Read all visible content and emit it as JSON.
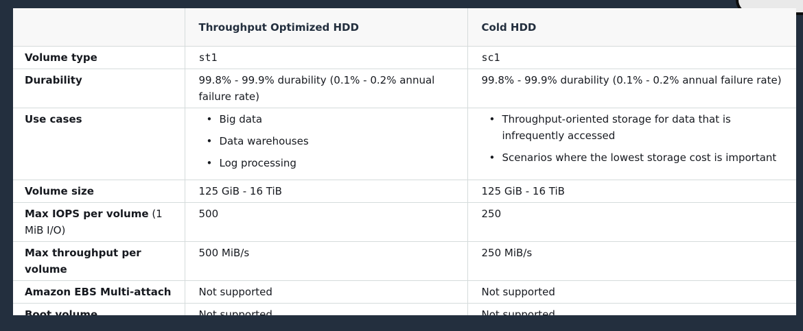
{
  "table": {
    "headers": [
      "",
      "Throughput Optimized HDD",
      "Cold HDD"
    ],
    "rows": {
      "volume_type": {
        "label": "Volume type",
        "st1": "st1",
        "sc1": "sc1"
      },
      "durability": {
        "label": "Durability",
        "st1": "99.8% - 99.9% durability (0.1% - 0.2% annual failure rate)",
        "sc1": "99.8% - 99.9% durability (0.1% - 0.2% annual failure rate)"
      },
      "use_cases": {
        "label": "Use cases",
        "st1": [
          "Big data",
          "Data warehouses",
          "Log processing"
        ],
        "sc1": [
          "Throughput-oriented storage for data that is infrequently accessed",
          "Scenarios where the lowest storage cost is important"
        ]
      },
      "volume_size": {
        "label": "Volume size",
        "st1": "125 GiB - 16 TiB",
        "sc1": "125 GiB - 16 TiB"
      },
      "max_iops": {
        "label_bold": "Max IOPS per volume",
        "label_light": " (1 MiB I/O)",
        "st1": "500",
        "sc1": "250"
      },
      "max_throughput": {
        "label": "Max throughput per volume",
        "st1": "500 MiB/s",
        "sc1": "250 MiB/s"
      },
      "multi_attach": {
        "label": "Amazon EBS Multi-attach",
        "st1": "Not supported",
        "sc1": "Not supported"
      },
      "boot_volume": {
        "label": "Boot volume",
        "st1": "Not supported",
        "sc1": "Not supported"
      }
    }
  }
}
